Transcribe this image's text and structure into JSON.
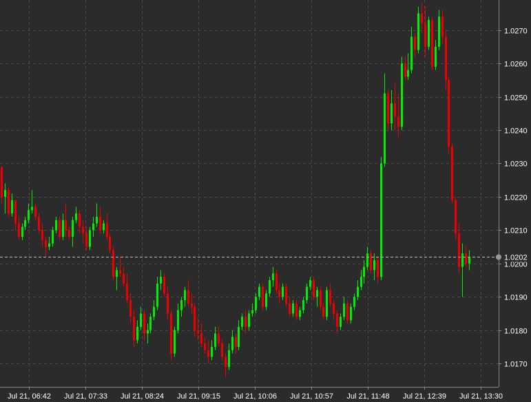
{
  "chart_data": {
    "type": "candlestick",
    "instrument": "",
    "x_tick_labels": [
      "Jul 21, 06:42",
      "Jul 21, 07:33",
      "Jul 21, 08:24",
      "Jul 21, 09:15",
      "Jul 21, 10:06",
      "Jul 21, 10:57",
      "Jul 21, 11:48",
      "Jul 21, 12:39",
      "Jul 21, 13:30"
    ],
    "y_tick_labels": [
      "1.0270",
      "1.0260",
      "1.0250",
      "1.0240",
      "1.0230",
      "1.0220",
      "1.0210",
      "1.0200",
      "1.0190",
      "1.0180",
      "1.0170"
    ],
    "ylim": [
      1.0163,
      1.0279
    ],
    "grid": true,
    "current_price": 1.0202,
    "current_price_label": "1.0202",
    "colors": {
      "background": "#2b2b2b",
      "up": "#00ee00",
      "down": "#ee0000",
      "grid": "#4a4a4a",
      "axis_text": "#ffffff"
    },
    "candles": [
      [
        1.0229,
        1.0229,
        1.0218,
        1.022
      ],
      [
        1.022,
        1.0224,
        1.0215,
        1.0222
      ],
      [
        1.0222,
        1.0223,
        1.0214,
        1.0215
      ],
      [
        1.0215,
        1.0221,
        1.0214,
        1.0219
      ],
      [
        1.0219,
        1.0219,
        1.021,
        1.0212
      ],
      [
        1.0212,
        1.0214,
        1.0207,
        1.0208
      ],
      [
        1.0208,
        1.0212,
        1.0207,
        1.0211
      ],
      [
        1.0211,
        1.0214,
        1.021,
        1.0213
      ],
      [
        1.0213,
        1.0218,
        1.0212,
        1.0216
      ],
      [
        1.0216,
        1.0222,
        1.0215,
        1.0217
      ],
      [
        1.0217,
        1.0218,
        1.0213,
        1.0214
      ],
      [
        1.0214,
        1.0215,
        1.0209,
        1.021
      ],
      [
        1.021,
        1.0212,
        1.0205,
        1.0207
      ],
      [
        1.0207,
        1.0208,
        1.0202,
        1.0205
      ],
      [
        1.0205,
        1.0208,
        1.0204,
        1.0206
      ],
      [
        1.0206,
        1.0211,
        1.0205,
        1.021
      ],
      [
        1.021,
        1.0214,
        1.0209,
        1.0213
      ],
      [
        1.0213,
        1.0214,
        1.0207,
        1.0208
      ],
      [
        1.0208,
        1.0215,
        1.0207,
        1.0213
      ],
      [
        1.0213,
        1.0218,
        1.0208,
        1.021
      ],
      [
        1.021,
        1.0211,
        1.0207,
        1.0208
      ],
      [
        1.0208,
        1.0214,
        1.0205,
        1.0213
      ],
      [
        1.0213,
        1.0217,
        1.0212,
        1.0215
      ],
      [
        1.0215,
        1.0216,
        1.0209,
        1.0211
      ],
      [
        1.0211,
        1.0213,
        1.0206,
        1.0209
      ],
      [
        1.0209,
        1.0211,
        1.0204,
        1.0205
      ],
      [
        1.0205,
        1.0211,
        1.0204,
        1.021
      ],
      [
        1.021,
        1.0214,
        1.0208,
        1.0212
      ],
      [
        1.0212,
        1.0218,
        1.0211,
        1.0214
      ],
      [
        1.0214,
        1.0217,
        1.0209,
        1.021
      ],
      [
        1.021,
        1.0213,
        1.0209,
        1.0212
      ],
      [
        1.0212,
        1.0215,
        1.0207,
        1.0208
      ],
      [
        1.0208,
        1.0209,
        1.0203,
        1.0204
      ],
      [
        1.0204,
        1.0205,
        1.0195,
        1.0196
      ],
      [
        1.0196,
        1.0199,
        1.0192,
        1.0198
      ],
      [
        1.0198,
        1.0202,
        1.0196,
        1.0197
      ],
      [
        1.0197,
        1.0199,
        1.0193,
        1.0194
      ],
      [
        1.0194,
        1.0197,
        1.0188,
        1.0189
      ],
      [
        1.0189,
        1.0191,
        1.0182,
        1.0184
      ],
      [
        1.0184,
        1.0186,
        1.0175,
        1.0177
      ],
      [
        1.0177,
        1.0183,
        1.0176,
        1.0181
      ],
      [
        1.0181,
        1.0187,
        1.018,
        1.0185
      ],
      [
        1.0185,
        1.0186,
        1.0177,
        1.0179
      ],
      [
        1.0179,
        1.0182,
        1.0176,
        1.018
      ],
      [
        1.018,
        1.0185,
        1.0179,
        1.0184
      ],
      [
        1.0184,
        1.0189,
        1.0183,
        1.0187
      ],
      [
        1.0187,
        1.0196,
        1.0186,
        1.0194
      ],
      [
        1.0194,
        1.0198,
        1.0192,
        1.0196
      ],
      [
        1.0196,
        1.0197,
        1.019,
        1.0191
      ],
      [
        1.0191,
        1.0193,
        1.0183,
        1.0185
      ],
      [
        1.0185,
        1.0186,
        1.0171,
        1.0173
      ],
      [
        1.0173,
        1.0181,
        1.0172,
        1.018
      ],
      [
        1.018,
        1.0188,
        1.0179,
        1.0186
      ],
      [
        1.0186,
        1.019,
        1.0184,
        1.0189
      ],
      [
        1.0189,
        1.0193,
        1.0187,
        1.0192
      ],
      [
        1.0192,
        1.0195,
        1.0187,
        1.0188
      ],
      [
        1.0188,
        1.0191,
        1.0185,
        1.0187
      ],
      [
        1.0187,
        1.0188,
        1.0178,
        1.018
      ],
      [
        1.018,
        1.0184,
        1.0177,
        1.0179
      ],
      [
        1.0179,
        1.0182,
        1.0175,
        1.0176
      ],
      [
        1.0176,
        1.0178,
        1.0173,
        1.0174
      ],
      [
        1.0174,
        1.0177,
        1.017,
        1.0172
      ],
      [
        1.0172,
        1.0177,
        1.0171,
        1.0175
      ],
      [
        1.0175,
        1.0181,
        1.0174,
        1.0179
      ],
      [
        1.0179,
        1.0181,
        1.0175,
        1.0176
      ],
      [
        1.0176,
        1.0177,
        1.0171,
        1.0172
      ],
      [
        1.0172,
        1.0173,
        1.0166,
        1.0169
      ],
      [
        1.0169,
        1.0176,
        1.0168,
        1.0174
      ],
      [
        1.0174,
        1.018,
        1.0173,
        1.0178
      ],
      [
        1.0178,
        1.0179,
        1.0173,
        1.0175
      ],
      [
        1.0175,
        1.0183,
        1.0174,
        1.0181
      ],
      [
        1.0181,
        1.0185,
        1.018,
        1.0184
      ],
      [
        1.0184,
        1.0186,
        1.0179,
        1.0181
      ],
      [
        1.0181,
        1.0186,
        1.018,
        1.0185
      ],
      [
        1.0185,
        1.0188,
        1.0184,
        1.0186
      ],
      [
        1.0186,
        1.0191,
        1.0185,
        1.019
      ],
      [
        1.019,
        1.0194,
        1.0189,
        1.0193
      ],
      [
        1.0193,
        1.0194,
        1.0186,
        1.0187
      ],
      [
        1.0187,
        1.0192,
        1.0186,
        1.0191
      ],
      [
        1.0191,
        1.0196,
        1.019,
        1.0195
      ],
      [
        1.0195,
        1.0199,
        1.0193,
        1.0197
      ],
      [
        1.0197,
        1.0198,
        1.0191,
        1.0192
      ],
      [
        1.0192,
        1.0194,
        1.0188,
        1.019
      ],
      [
        1.019,
        1.0194,
        1.0189,
        1.0193
      ],
      [
        1.0193,
        1.0194,
        1.0187,
        1.0188
      ],
      [
        1.0188,
        1.019,
        1.0184,
        1.0185
      ],
      [
        1.0185,
        1.0189,
        1.0184,
        1.0188
      ],
      [
        1.0188,
        1.0189,
        1.0183,
        1.0184
      ],
      [
        1.0184,
        1.0187,
        1.0183,
        1.0186
      ],
      [
        1.0186,
        1.019,
        1.0185,
        1.0189
      ],
      [
        1.0189,
        1.0194,
        1.0188,
        1.0193
      ],
      [
        1.0193,
        1.0196,
        1.0192,
        1.0195
      ],
      [
        1.0195,
        1.0196,
        1.0189,
        1.019
      ],
      [
        1.019,
        1.0193,
        1.0187,
        1.0192
      ],
      [
        1.0192,
        1.0193,
        1.0186,
        1.0187
      ],
      [
        1.0187,
        1.0188,
        1.0183,
        1.0184
      ],
      [
        1.0184,
        1.0193,
        1.0183,
        1.0192
      ],
      [
        1.0192,
        1.0194,
        1.0187,
        1.0188
      ],
      [
        1.0188,
        1.0189,
        1.0183,
        1.0185
      ],
      [
        1.0185,
        1.0186,
        1.0179,
        1.0181
      ],
      [
        1.0181,
        1.0185,
        1.018,
        1.0184
      ],
      [
        1.0184,
        1.019,
        1.0183,
        1.0188
      ],
      [
        1.0188,
        1.0189,
        1.0182,
        1.0183
      ],
      [
        1.0183,
        1.0188,
        1.0182,
        1.0187
      ],
      [
        1.0187,
        1.0191,
        1.0186,
        1.019
      ],
      [
        1.019,
        1.0195,
        1.0189,
        1.0193
      ],
      [
        1.0193,
        1.0198,
        1.0192,
        1.0196
      ],
      [
        1.0196,
        1.0201,
        1.0194,
        1.0199
      ],
      [
        1.0199,
        1.0205,
        1.0198,
        1.0203
      ],
      [
        1.0203,
        1.0204,
        1.0197,
        1.0198
      ],
      [
        1.0198,
        1.0203,
        1.0195,
        1.0201
      ],
      [
        1.0201,
        1.0202,
        1.0194,
        1.0196
      ],
      [
        1.0196,
        1.0232,
        1.0195,
        1.023
      ],
      [
        1.023,
        1.0257,
        1.0229,
        1.0251
      ],
      [
        1.0251,
        1.0252,
        1.024,
        1.0242
      ],
      [
        1.0242,
        1.0252,
        1.024,
        1.0248
      ],
      [
        1.0248,
        1.0254,
        1.024,
        1.0244
      ],
      [
        1.0244,
        1.0251,
        1.0238,
        1.0241
      ],
      [
        1.0241,
        1.0262,
        1.024,
        1.026
      ],
      [
        1.026,
        1.0262,
        1.0255,
        1.0256
      ],
      [
        1.0256,
        1.0263,
        1.0255,
        1.0258
      ],
      [
        1.0258,
        1.0271,
        1.0257,
        1.0268
      ],
      [
        1.0268,
        1.0269,
        1.0262,
        1.0264
      ],
      [
        1.0264,
        1.0277,
        1.0263,
        1.0275
      ],
      [
        1.0275,
        1.0278,
        1.0269,
        1.0272
      ],
      [
        1.0272,
        1.0277,
        1.0262,
        1.0265
      ],
      [
        1.0265,
        1.0274,
        1.0264,
        1.0273
      ],
      [
        1.0273,
        1.0274,
        1.0258,
        1.0259
      ],
      [
        1.0259,
        1.0267,
        1.0258,
        1.0265
      ],
      [
        1.0265,
        1.0276,
        1.0264,
        1.0274
      ],
      [
        1.0274,
        1.0276,
        1.0266,
        1.0268
      ],
      [
        1.0268,
        1.027,
        1.0252,
        1.0255
      ],
      [
        1.0255,
        1.0256,
        1.0233,
        1.0235
      ],
      [
        1.0235,
        1.0236,
        1.0218,
        1.0219
      ],
      [
        1.0219,
        1.022,
        1.0207,
        1.0209
      ],
      [
        1.0209,
        1.0212,
        1.0197,
        1.0199
      ],
      [
        1.0199,
        1.0206,
        1.019,
        1.0203
      ],
      [
        1.0203,
        1.0205,
        1.0199,
        1.02
      ],
      [
        1.02,
        1.0204,
        1.0198,
        1.0202
      ]
    ]
  }
}
